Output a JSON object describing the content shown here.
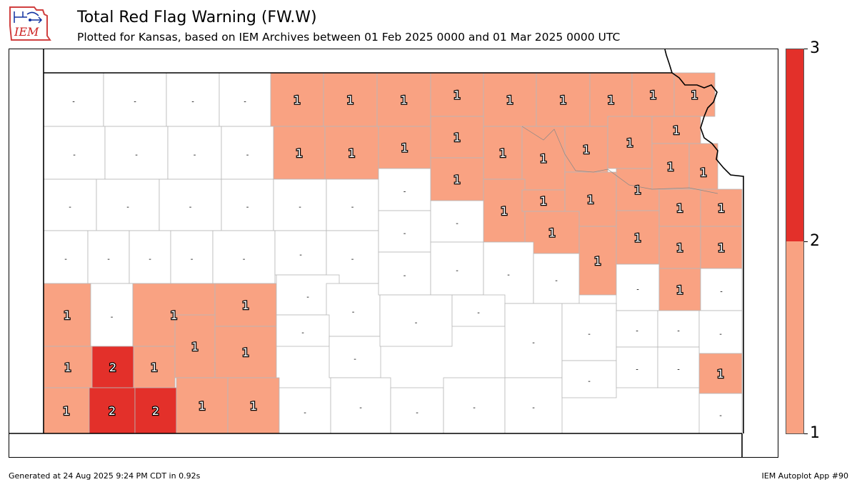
{
  "header": {
    "logo_text": "IEM",
    "title": "Total Red Flag Warning (FW.W)",
    "subtitle": "Plotted for Kansas, based on IEM Archives  between 01 Feb 2025 0000 and 01 Mar 2025 0000 UTC"
  },
  "colors": {
    "none": "#ffffff",
    "level1": "#f9a282",
    "level2": "#e3302a",
    "county_border": "#b8b8b8",
    "state_border": "#000000"
  },
  "colorbar": {
    "labels": [
      "3",
      "2",
      "1"
    ],
    "segments": [
      {
        "from": 2,
        "to": 3,
        "color": "#e3302a"
      },
      {
        "from": 1,
        "to": 2,
        "color": "#f9a282"
      }
    ],
    "min": 1,
    "max": 3
  },
  "map": {
    "state": "Kansas",
    "empty_label": "-",
    "counties": [
      {
        "v": null
      },
      {
        "v": null
      },
      {
        "v": null
      },
      {
        "v": null
      },
      {
        "v": 1
      },
      {
        "v": 1
      },
      {
        "v": 1
      },
      {
        "v": 1
      },
      {
        "v": 1
      },
      {
        "v": 1
      },
      {
        "v": 1
      },
      {
        "v": 1
      },
      {
        "v": 1
      },
      {
        "v": null
      },
      {
        "v": null
      },
      {
        "v": null
      },
      {
        "v": null
      },
      {
        "v": 1
      },
      {
        "v": 1
      },
      {
        "v": 1
      },
      {
        "v": 1
      },
      {
        "v": 1
      },
      {
        "v": 1
      },
      {
        "v": 1
      },
      {
        "v": 1
      },
      {
        "v": 1
      },
      {
        "v": null
      },
      {
        "v": null
      },
      {
        "v": null
      },
      {
        "v": null
      },
      {
        "v": null
      },
      {
        "v": null
      },
      {
        "v": null
      },
      {
        "v": 1
      },
      {
        "v": 1
      },
      {
        "v": 1
      },
      {
        "v": 1
      },
      {
        "v": 1
      },
      {
        "v": 1
      },
      {
        "v": 1
      },
      {
        "v": null
      },
      {
        "v": null
      },
      {
        "v": null
      },
      {
        "v": null
      },
      {
        "v": null
      },
      {
        "v": null
      },
      {
        "v": null
      },
      {
        "v": null
      },
      {
        "v": null
      },
      {
        "v": 1
      },
      {
        "v": 1
      },
      {
        "v": 1
      },
      {
        "v": 1
      },
      {
        "v": 1
      },
      {
        "v": 1
      },
      {
        "v": null
      },
      {
        "v": 1
      },
      {
        "v": 1
      },
      {
        "v": null
      },
      {
        "v": null
      },
      {
        "v": null
      },
      {
        "v": null
      },
      {
        "v": null
      },
      {
        "v": null
      },
      {
        "v": null
      },
      {
        "v": 1
      },
      {
        "v": 1
      },
      {
        "v": 1
      },
      {
        "v": 1
      },
      {
        "v": 2
      },
      {
        "v": 1
      },
      {
        "v": 1
      },
      {
        "v": 1
      },
      {
        "v": null
      },
      {
        "v": null
      },
      {
        "v": null
      },
      {
        "v": null
      },
      {
        "v": null
      },
      {
        "v": null
      },
      {
        "v": null
      },
      {
        "v": null
      },
      {
        "v": null
      },
      {
        "v": null
      },
      {
        "v": 1
      },
      {
        "v": 1
      },
      {
        "v": 2
      },
      {
        "v": 2
      },
      {
        "v": 1
      },
      {
        "v": 1
      },
      {
        "v": null
      },
      {
        "v": null
      },
      {
        "v": null
      },
      {
        "v": null
      },
      {
        "v": null
      },
      {
        "v": null
      },
      {
        "v": null
      },
      {
        "v": null
      },
      {
        "v": null
      },
      {
        "v": 1
      }
    ]
  },
  "footer": {
    "left": "Generated at 24 Aug 2025 9:24 PM CDT in 0.92s",
    "right": "IEM Autoplot App #90"
  }
}
